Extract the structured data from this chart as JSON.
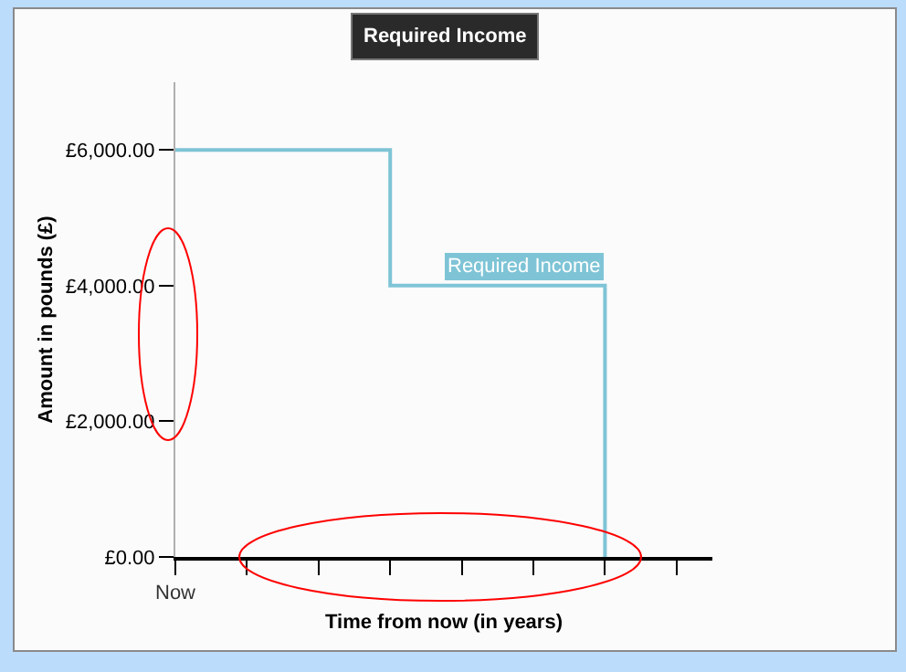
{
  "chart_data": {
    "type": "step",
    "title": "Required Income",
    "xlabel": "Time from now (in years)",
    "ylabel": "Amount in pounds (£)",
    "categories": [
      "Now",
      null,
      null,
      null,
      null,
      null,
      null,
      null
    ],
    "series": [
      {
        "name": "Required Income",
        "color": "#7ec4d6",
        "values": [
          6000,
          6000,
          6000,
          4000,
          4000,
          4000,
          0,
          null
        ]
      }
    ],
    "ylim": [
      0,
      7000
    ],
    "yticks": [
      {
        "value": 0,
        "label": "£0.00"
      },
      {
        "value": 2000,
        "label": "£2,000.00"
      },
      {
        "value": 4000,
        "label": "£4,000.00"
      },
      {
        "value": 6000,
        "label": "£6,000.00"
      }
    ],
    "grid": false,
    "legend": false
  }
}
